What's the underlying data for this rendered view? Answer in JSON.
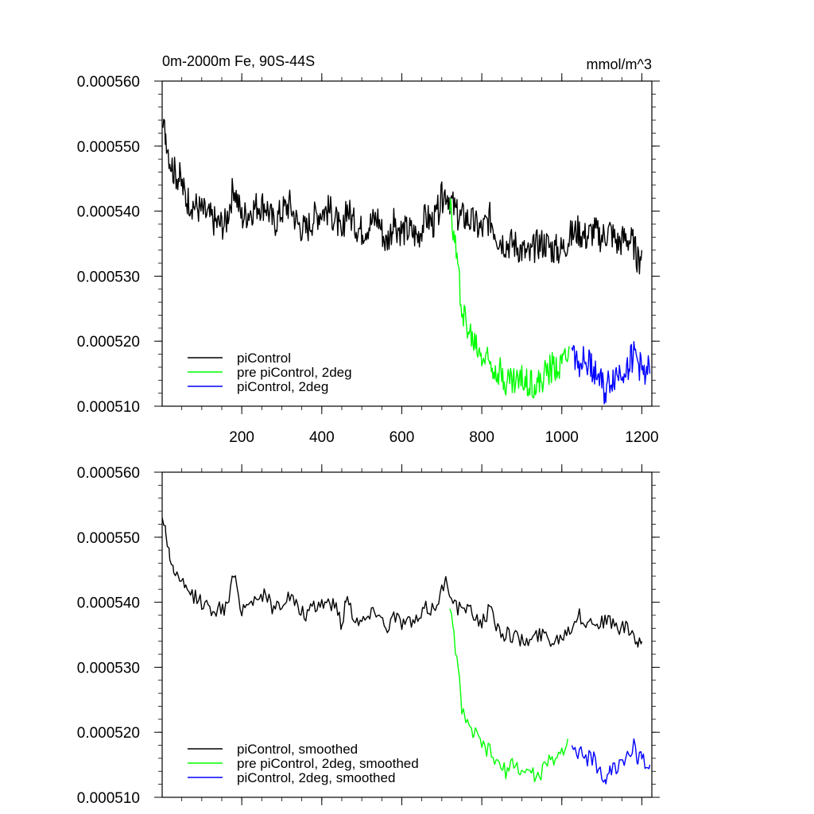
{
  "figure": {
    "title_left": "0m-2000m Fe, 90S-44S",
    "title_right": "mmol/m^3"
  },
  "chart_data": [
    {
      "type": "line",
      "title": "0m-2000m Fe, 90S-44S",
      "units": "mmol/m^3",
      "xlim": [
        1,
        1225
      ],
      "ylim": [
        0.00051,
        0.00056
      ],
      "xticks": [
        200,
        400,
        600,
        800,
        1000,
        1200
      ],
      "xtick_labels": [
        "200",
        "400",
        "600",
        "800",
        "1000",
        "1200"
      ],
      "yticks": [
        0.00051,
        0.00052,
        0.00053,
        0.00054,
        0.00055,
        0.00056
      ],
      "ytick_labels": [
        "0.000510",
        "0.000520",
        "0.000530",
        "0.000540",
        "0.000550",
        "0.000560"
      ],
      "legend_position": "bottom-left",
      "series": [
        {
          "name": "piControl",
          "color": "#000000",
          "x": [
            1,
            10,
            20,
            30,
            45,
            60,
            80,
            100,
            120,
            140,
            160,
            180,
            200,
            220,
            240,
            260,
            280,
            300,
            320,
            340,
            360,
            380,
            400,
            420,
            440,
            450,
            460,
            480,
            500,
            520,
            540,
            560,
            580,
            600,
            620,
            640,
            660,
            680,
            700,
            710,
            720,
            740,
            760,
            780,
            800,
            820,
            840,
            860,
            880,
            900,
            920,
            940,
            960,
            980,
            1000,
            1020,
            1040,
            1060,
            1080,
            1100,
            1120,
            1140,
            1160,
            1180,
            1190,
            1200
          ],
          "y": [
            0.000553,
            0.000552,
            0.000548,
            0.000546,
            0.000545,
            0.000542,
            0.000541,
            0.00054,
            0.000539,
            0.000538,
            0.000538,
            0.000544,
            0.000539,
            0.00054,
            0.000541,
            0.000541,
            0.000538,
            0.00054,
            0.000541,
            0.000538,
            0.000537,
            0.000539,
            0.00054,
            0.00054,
            0.000538,
            0.000535,
            0.000541,
            0.000538,
            0.000537,
            0.000538,
            0.000539,
            0.000535,
            0.000538,
            0.000537,
            0.000537,
            0.000536,
            0.000539,
            0.000538,
            0.000542,
            0.000543,
            0.000542,
            0.000539,
            0.000539,
            0.000538,
            0.000537,
            0.000539,
            0.000536,
            0.000535,
            0.000535,
            0.000534,
            0.000533,
            0.000535,
            0.000535,
            0.000534,
            0.000534,
            0.000536,
            0.000537,
            0.000536,
            0.000537,
            0.000536,
            0.000537,
            0.000535,
            0.000536,
            0.000535,
            0.000532,
            0.000534
          ]
        },
        {
          "name": "pre piControl, 2deg",
          "color": "#00ff00",
          "x": [
            720,
            730,
            740,
            750,
            760,
            770,
            780,
            800,
            820,
            840,
            860,
            880,
            900,
            920,
            940,
            960,
            980,
            1000,
            1020
          ],
          "y": [
            0.00054,
            0.000537,
            0.000531,
            0.000526,
            0.000523,
            0.000521,
            0.00052,
            0.000518,
            0.000517,
            0.000516,
            0.000514,
            0.000514,
            0.000514,
            0.000514,
            0.000513,
            0.000515,
            0.000516,
            0.000517,
            0.000519
          ]
        },
        {
          "name": "piControl, 2deg",
          "color": "#0000ff",
          "x": [
            1025,
            1040,
            1060,
            1080,
            1100,
            1110,
            1120,
            1140,
            1160,
            1180,
            1190,
            1200,
            1210,
            1220
          ],
          "y": [
            0.000519,
            0.000517,
            0.000517,
            0.000516,
            0.000513,
            0.000512,
            0.000514,
            0.000515,
            0.000516,
            0.000518,
            0.000517,
            0.000515,
            0.000516,
            0.000515
          ]
        }
      ]
    },
    {
      "type": "line",
      "xlim": [
        1,
        1225
      ],
      "ylim": [
        0.00051,
        0.00056
      ],
      "yticks": [
        0.00051,
        0.00052,
        0.00053,
        0.00054,
        0.00055,
        0.00056
      ],
      "ytick_labels": [
        "0.000510",
        "0.000520",
        "0.000530",
        "0.000540",
        "0.000550",
        "0.000560"
      ],
      "xticks": [
        200,
        400,
        600,
        800,
        1000,
        1200
      ],
      "legend_position": "bottom-left",
      "series": [
        {
          "name": "piControl, smoothed",
          "color": "#000000",
          "x": [
            1,
            10,
            20,
            30,
            45,
            60,
            80,
            100,
            120,
            140,
            160,
            180,
            200,
            220,
            240,
            260,
            280,
            300,
            320,
            340,
            360,
            380,
            400,
            420,
            440,
            450,
            460,
            480,
            500,
            520,
            540,
            560,
            580,
            600,
            620,
            640,
            660,
            680,
            700,
            710,
            720,
            740,
            760,
            780,
            800,
            820,
            840,
            860,
            880,
            900,
            920,
            940,
            960,
            980,
            1000,
            1020,
            1040,
            1060,
            1080,
            1100,
            1120,
            1140,
            1160,
            1180,
            1190,
            1200
          ],
          "y": [
            0.000553,
            0.000551,
            0.000547,
            0.000545,
            0.000543,
            0.000542,
            0.000541,
            0.00054,
            0.000539,
            0.000539,
            0.000539,
            0.000544,
            0.000539,
            0.00054,
            0.000541,
            0.000541,
            0.000539,
            0.00054,
            0.000541,
            0.000539,
            0.000538,
            0.000539,
            0.00054,
            0.00054,
            0.000539,
            0.000536,
            0.000541,
            0.000538,
            0.000537,
            0.000538,
            0.000539,
            0.000536,
            0.000538,
            0.000537,
            0.000537,
            0.000537,
            0.000539,
            0.000539,
            0.000542,
            0.000543,
            0.000542,
            0.000539,
            0.000539,
            0.000538,
            0.000537,
            0.000539,
            0.000536,
            0.000535,
            0.000535,
            0.000534,
            0.000534,
            0.000535,
            0.000535,
            0.000534,
            0.000535,
            0.000536,
            0.000538,
            0.000537,
            0.000537,
            0.000537,
            0.000537,
            0.000536,
            0.000536,
            0.000535,
            0.000533,
            0.000534
          ]
        },
        {
          "name": "pre piControl, 2deg, smoothed",
          "color": "#00ff00",
          "x": [
            720,
            730,
            740,
            750,
            760,
            770,
            780,
            800,
            820,
            840,
            860,
            880,
            900,
            920,
            940,
            960,
            980,
            1000,
            1015
          ],
          "y": [
            0.000539,
            0.000535,
            0.00053,
            0.000524,
            0.000522,
            0.00052,
            0.00052,
            0.000518,
            0.000517,
            0.000515,
            0.000514,
            0.000515,
            0.000514,
            0.000514,
            0.000513,
            0.000515,
            0.000516,
            0.000517,
            0.000519
          ]
        },
        {
          "name": "piControl, 2deg, smoothed",
          "color": "#0000ff",
          "x": [
            1025,
            1040,
            1060,
            1080,
            1100,
            1110,
            1120,
            1140,
            1160,
            1180,
            1190,
            1200,
            1210,
            1220
          ],
          "y": [
            0.000518,
            0.000517,
            0.000516,
            0.000516,
            0.000513,
            0.000512,
            0.000514,
            0.000515,
            0.000516,
            0.000518,
            0.000516,
            0.000516,
            0.000515,
            0.000515
          ]
        }
      ]
    }
  ]
}
